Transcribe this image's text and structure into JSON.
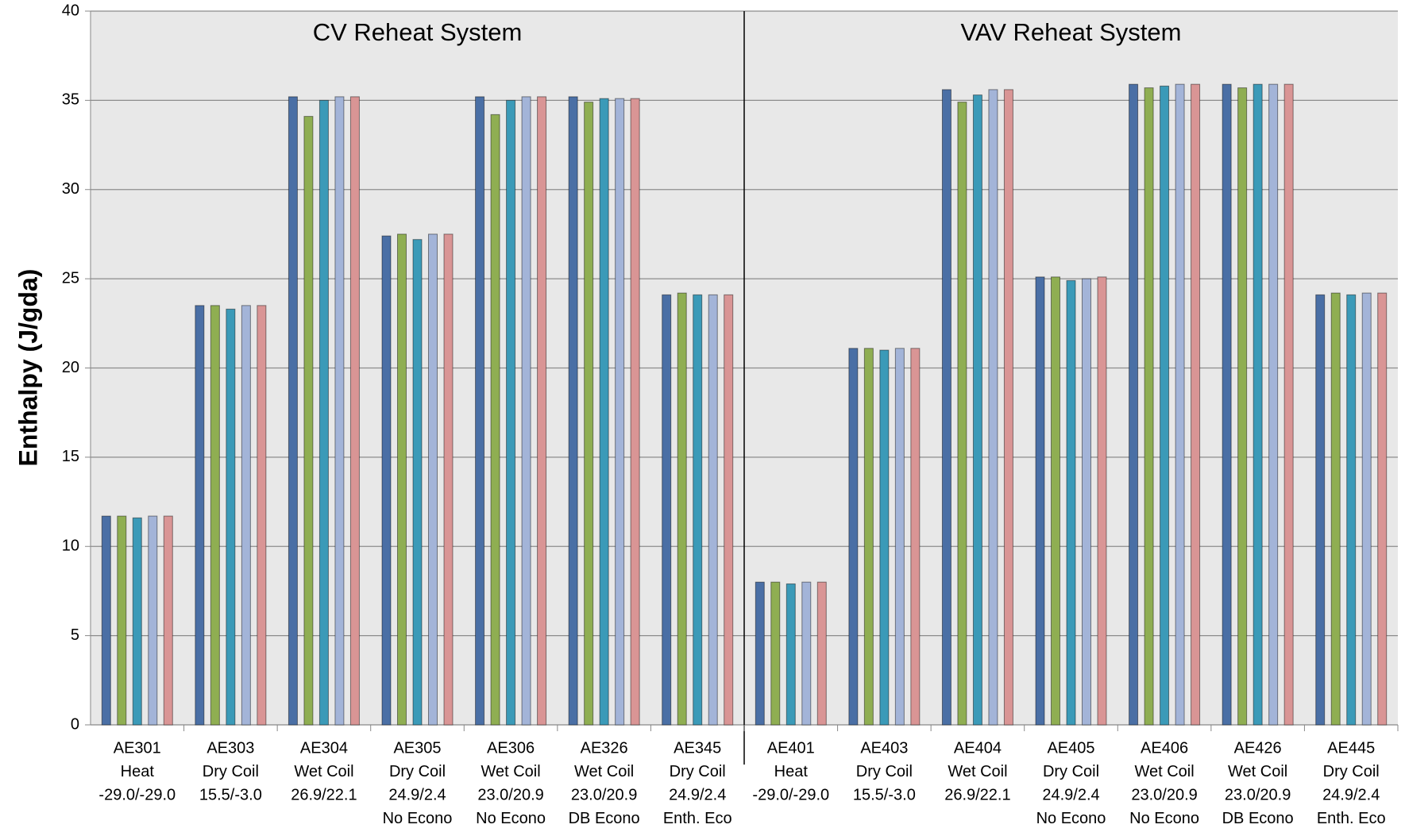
{
  "chart_data": {
    "type": "bar",
    "y_label": "Enthalpy (J/gda)",
    "annotations": [
      "CV Reheat System",
      "VAV Reheat System"
    ],
    "categories": [
      [
        "AE301",
        "Heat",
        "-29.0/-29.0"
      ],
      [
        "AE303",
        "Dry Coil",
        "15.5/-3.0"
      ],
      [
        "AE304",
        "Wet Coil",
        "26.9/22.1"
      ],
      [
        "AE305",
        "Dry Coil",
        "24.9/2.4",
        "No Econo"
      ],
      [
        "AE306",
        "Wet Coil",
        "23.0/20.9",
        "No Econo"
      ],
      [
        "AE326",
        "Wet Coil",
        "23.0/20.9",
        "DB  Econo"
      ],
      [
        "AE345",
        "Dry Coil",
        "24.9/2.4",
        "Enth. Eco"
      ],
      [
        "AE401",
        "Heat",
        "-29.0/-29.0"
      ],
      [
        "AE403",
        "Dry Coil",
        "15.5/-3.0"
      ],
      [
        "AE404",
        "Wet Coil",
        "26.9/22.1"
      ],
      [
        "AE405",
        "Dry Coil",
        "24.9/2.4",
        "No Econo"
      ],
      [
        "AE406",
        "Wet Coil",
        "23.0/20.9",
        "No Econo"
      ],
      [
        "AE426",
        "Wet Coil",
        "23.0/20.9",
        "DB  Econo"
      ],
      [
        "AE445",
        "Dry Coil",
        "24.9/2.4",
        "Enth. Eco"
      ]
    ],
    "series": [
      {
        "color": "#4a6fa5",
        "values": [
          11.7,
          23.5,
          35.2,
          27.4,
          35.2,
          35.2,
          24.1,
          8.0,
          21.1,
          35.6,
          25.1,
          35.9,
          35.9,
          24.1
        ]
      },
      {
        "color": "#8fae52",
        "values": [
          11.7,
          23.5,
          34.1,
          27.5,
          34.2,
          34.9,
          24.2,
          8.0,
          21.1,
          34.9,
          25.1,
          35.7,
          35.7,
          24.2
        ]
      },
      {
        "color": "#3b9ab8",
        "values": [
          11.6,
          23.3,
          35.0,
          27.2,
          35.0,
          35.1,
          24.1,
          7.9,
          21.0,
          35.3,
          24.9,
          35.8,
          35.9,
          24.1
        ]
      },
      {
        "color": "#a3b4d8",
        "values": [
          11.7,
          23.5,
          35.2,
          27.5,
          35.2,
          35.1,
          24.1,
          8.0,
          21.1,
          35.6,
          25.0,
          35.9,
          35.9,
          24.2
        ]
      },
      {
        "color": "#d99595",
        "values": [
          11.7,
          23.5,
          35.2,
          27.5,
          35.2,
          35.1,
          24.1,
          8.0,
          21.1,
          35.6,
          25.1,
          35.9,
          35.9,
          24.2
        ]
      }
    ],
    "ylim": [
      0,
      40
    ],
    "yticks": [
      0,
      5,
      10,
      15,
      20,
      25,
      30,
      35,
      40
    ],
    "grid": true
  }
}
